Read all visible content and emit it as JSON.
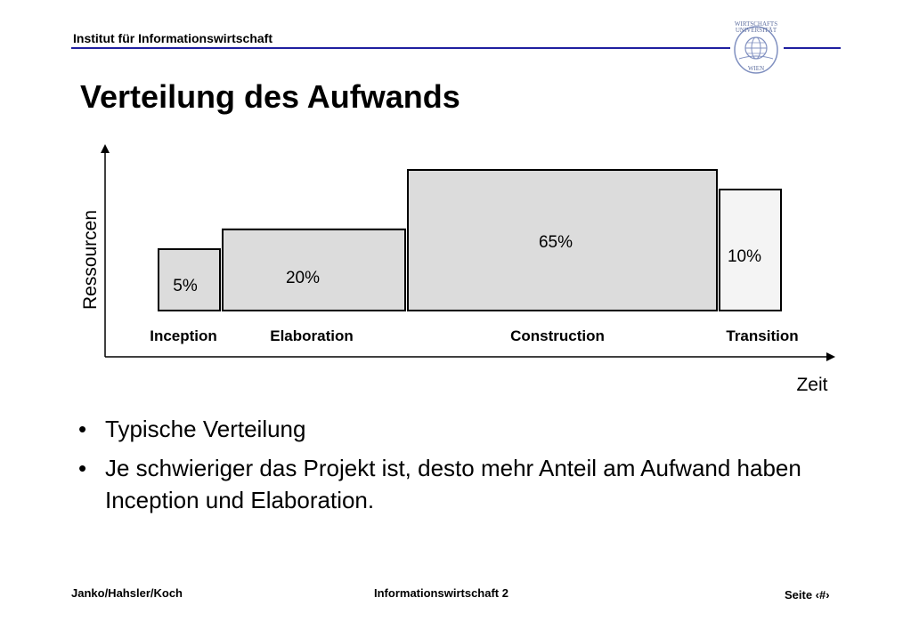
{
  "header": {
    "institute": "Institut für Informationswirtschaft"
  },
  "logo": {
    "line1": "WIRTSCHAFTS",
    "line2": "UNIVERSITÄT",
    "line3": "WIEN"
  },
  "title": "Verteilung des Aufwands",
  "chart_data": {
    "type": "bar",
    "ylabel": "Ressourcen",
    "xlabel": "Zeit",
    "categories": [
      "Inception",
      "Elaboration",
      "Construction",
      "Transition"
    ],
    "values": [
      5,
      20,
      65,
      10
    ],
    "labels": [
      "5%",
      "20%",
      "65%",
      "10%"
    ],
    "fill": [
      "#dcdcdc",
      "#dcdcdc",
      "#dcdcdc",
      "#f4f4f4"
    ]
  },
  "bullets": [
    "Typische Verteilung",
    "Je schwieriger das Projekt ist, desto mehr Anteil am Aufwand haben Inception und Elaboration."
  ],
  "footer": {
    "authors": "Janko/Hahsler/Koch",
    "course": "Informationswirtschaft 2",
    "page": "Seite ‹#›"
  }
}
